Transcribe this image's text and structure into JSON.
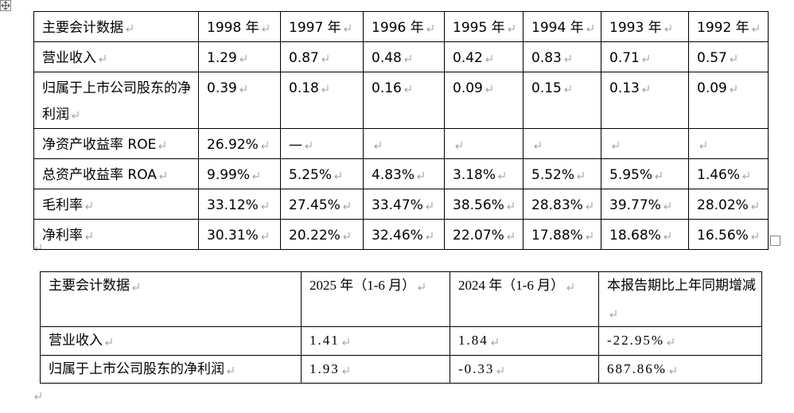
{
  "table1": {
    "header": [
      "主要会计数据",
      "1998 年",
      "1997 年",
      "1996 年",
      "1995 年",
      "1994 年",
      "1993 年",
      "1992 年"
    ],
    "rows": [
      [
        "营业收入",
        "1.29",
        "0.87",
        "0.48",
        "0.42",
        "0.83",
        "0.71",
        "0.57"
      ],
      [
        "归属于上市公司股东的净利润",
        "0.39",
        "0.18",
        "0.16",
        "0.09",
        "0.15",
        "0.13",
        "0.09"
      ],
      [
        "净资产收益率 ROE",
        "26.92%",
        "—",
        null,
        null,
        null,
        null,
        null
      ],
      [
        "总资产收益率 ROA",
        "9.99%",
        "5.25%",
        "4.83%",
        "3.18%",
        "5.52%",
        "5.95%",
        "1.46%"
      ],
      [
        "毛利率",
        "33.12%",
        "27.45%",
        "33.47%",
        "38.56%",
        "28.83%",
        "39.77%",
        "28.02%"
      ],
      [
        "净利率",
        "30.31%",
        "20.22%",
        "32.46%",
        "22.07%",
        "17.88%",
        "18.68%",
        "16.56%"
      ]
    ]
  },
  "table2": {
    "header": [
      "主要会计数据",
      "2025 年（1-6 月）",
      "2024 年（1-6 月）",
      "本报告期比上年同期增减"
    ],
    "rows": [
      [
        "营业收入",
        "1.41",
        "1.84",
        "-22.95%"
      ],
      [
        "归属于上市公司股东的净利润",
        "1.93",
        "-0.33",
        "687.86%"
      ]
    ]
  }
}
